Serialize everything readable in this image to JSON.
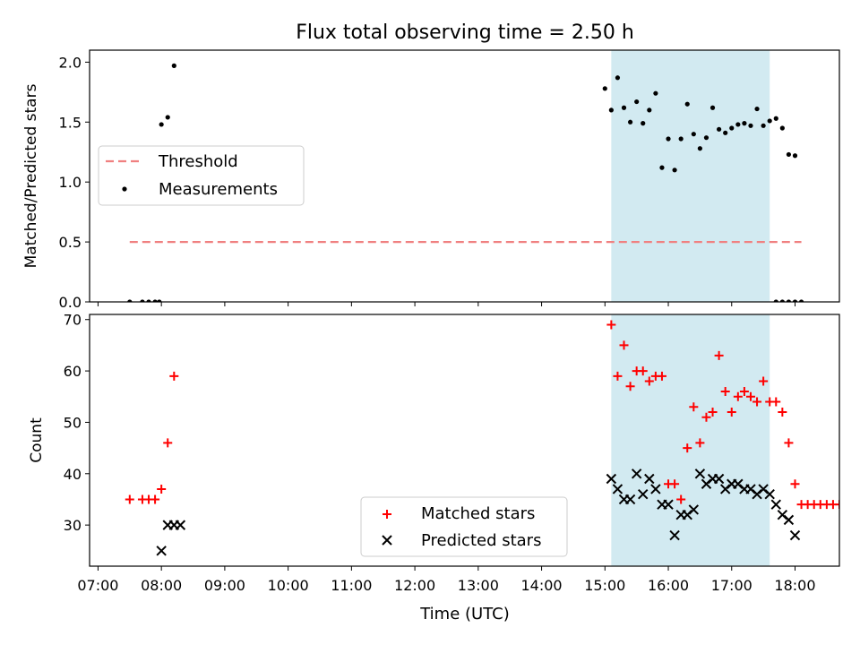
{
  "figure": {
    "title": "Flux total observing time = 2.50 h",
    "xlabel": "Time (UTC)",
    "xticks": [
      "07:00",
      "08:00",
      "09:00",
      "10:00",
      "11:00",
      "12:00",
      "13:00",
      "14:00",
      "15:00",
      "16:00",
      "17:00",
      "18:00"
    ]
  },
  "colors": {
    "threshold": "#f08080",
    "measurement": "#000000",
    "matched": "#ff0000",
    "predicted": "#000000",
    "shade": "#add8e6"
  },
  "chart_data": [
    {
      "type": "scatter",
      "ylabel": "Matched/Predicted stars",
      "xlim": [
        "06:52",
        "18:42"
      ],
      "ylim": [
        0,
        2.1
      ],
      "yticks": [
        "0.0",
        "0.5",
        "1.0",
        "1.5",
        "2.0"
      ],
      "shaded_region": [
        "15:06",
        "17:36"
      ],
      "legend": {
        "placement": "center-left",
        "entries": [
          "Threshold",
          "Measurements"
        ]
      },
      "threshold": {
        "name": "Threshold",
        "y": 0.5,
        "x_range": [
          "07:30",
          "18:06"
        ],
        "style": "dashed"
      },
      "series": [
        {
          "name": "Measurements",
          "points": [
            [
              "07:30",
              0.0
            ],
            [
              "07:42",
              0.0
            ],
            [
              "07:48",
              0.0
            ],
            [
              "07:54",
              0.0
            ],
            [
              "07:58",
              0.0
            ],
            [
              "08:00",
              1.48
            ],
            [
              "08:06",
              1.54
            ],
            [
              "08:12",
              1.97
            ],
            [
              "15:00",
              1.78
            ],
            [
              "15:06",
              1.6
            ],
            [
              "15:12",
              1.87
            ],
            [
              "15:18",
              1.62
            ],
            [
              "15:24",
              1.5
            ],
            [
              "15:30",
              1.67
            ],
            [
              "15:36",
              1.49
            ],
            [
              "15:42",
              1.6
            ],
            [
              "15:48",
              1.74
            ],
            [
              "15:54",
              1.12
            ],
            [
              "16:00",
              1.36
            ],
            [
              "16:06",
              1.1
            ],
            [
              "16:12",
              1.36
            ],
            [
              "16:18",
              1.65
            ],
            [
              "16:24",
              1.4
            ],
            [
              "16:30",
              1.28
            ],
            [
              "16:36",
              1.37
            ],
            [
              "16:42",
              1.62
            ],
            [
              "16:48",
              1.44
            ],
            [
              "16:54",
              1.41
            ],
            [
              "17:00",
              1.45
            ],
            [
              "17:06",
              1.48
            ],
            [
              "17:12",
              1.49
            ],
            [
              "17:18",
              1.47
            ],
            [
              "17:24",
              1.61
            ],
            [
              "17:30",
              1.47
            ],
            [
              "17:36",
              1.51
            ],
            [
              "17:42",
              1.53
            ],
            [
              "17:48",
              1.45
            ],
            [
              "17:54",
              1.23
            ],
            [
              "18:00",
              1.22
            ],
            [
              "17:42",
              0.0
            ],
            [
              "17:48",
              0.0
            ],
            [
              "17:54",
              0.0
            ],
            [
              "18:00",
              0.0
            ],
            [
              "18:06",
              0.0
            ]
          ]
        }
      ]
    },
    {
      "type": "scatter",
      "ylabel": "Count",
      "xlim": [
        "06:52",
        "18:42"
      ],
      "ylim": [
        22,
        71
      ],
      "yticks": [
        "30",
        "40",
        "50",
        "60",
        "70"
      ],
      "shaded_region": [
        "15:06",
        "17:36"
      ],
      "legend": {
        "placement": "bottom-center",
        "entries": [
          "Matched stars",
          "Predicted stars"
        ]
      },
      "series": [
        {
          "name": "Matched stars",
          "marker": "+",
          "points": [
            [
              "07:30",
              35
            ],
            [
              "07:42",
              35
            ],
            [
              "07:48",
              35
            ],
            [
              "07:54",
              35
            ],
            [
              "08:00",
              37
            ],
            [
              "08:06",
              46
            ],
            [
              "08:12",
              59
            ],
            [
              "15:06",
              69
            ],
            [
              "15:12",
              59
            ],
            [
              "15:18",
              65
            ],
            [
              "15:24",
              57
            ],
            [
              "15:30",
              60
            ],
            [
              "15:36",
              60
            ],
            [
              "15:42",
              58
            ],
            [
              "15:48",
              59
            ],
            [
              "15:54",
              59
            ],
            [
              "16:00",
              38
            ],
            [
              "16:06",
              38
            ],
            [
              "16:12",
              35
            ],
            [
              "16:18",
              45
            ],
            [
              "16:24",
              53
            ],
            [
              "16:30",
              46
            ],
            [
              "16:36",
              51
            ],
            [
              "16:42",
              52
            ],
            [
              "16:48",
              63
            ],
            [
              "16:54",
              56
            ],
            [
              "17:00",
              52
            ],
            [
              "17:06",
              55
            ],
            [
              "17:12",
              56
            ],
            [
              "17:18",
              55
            ],
            [
              "17:24",
              54
            ],
            [
              "17:30",
              58
            ],
            [
              "17:36",
              54
            ],
            [
              "17:42",
              54
            ],
            [
              "17:48",
              52
            ],
            [
              "17:54",
              46
            ],
            [
              "18:00",
              38
            ],
            [
              "18:06",
              34
            ],
            [
              "18:12",
              34
            ],
            [
              "18:18",
              34
            ],
            [
              "18:24",
              34
            ],
            [
              "18:30",
              34
            ],
            [
              "18:36",
              34
            ],
            [
              "18:42",
              34
            ]
          ]
        },
        {
          "name": "Predicted stars",
          "marker": "x",
          "points": [
            [
              "08:00",
              25
            ],
            [
              "08:06",
              30
            ],
            [
              "08:12",
              30
            ],
            [
              "08:18",
              30
            ],
            [
              "15:06",
              39
            ],
            [
              "15:12",
              37
            ],
            [
              "15:18",
              35
            ],
            [
              "15:24",
              35
            ],
            [
              "15:30",
              40
            ],
            [
              "15:36",
              36
            ],
            [
              "15:42",
              39
            ],
            [
              "15:48",
              37
            ],
            [
              "15:54",
              34
            ],
            [
              "16:00",
              34
            ],
            [
              "16:06",
              28
            ],
            [
              "16:12",
              32
            ],
            [
              "16:18",
              32
            ],
            [
              "16:24",
              33
            ],
            [
              "16:30",
              40
            ],
            [
              "16:36",
              38
            ],
            [
              "16:42",
              39
            ],
            [
              "16:48",
              39
            ],
            [
              "16:54",
              37
            ],
            [
              "17:00",
              38
            ],
            [
              "17:06",
              38
            ],
            [
              "17:12",
              37
            ],
            [
              "17:18",
              37
            ],
            [
              "17:24",
              36
            ],
            [
              "17:30",
              37
            ],
            [
              "17:36",
              36
            ],
            [
              "17:42",
              34
            ],
            [
              "17:48",
              32
            ],
            [
              "17:54",
              31
            ],
            [
              "18:00",
              28
            ]
          ]
        }
      ]
    }
  ]
}
